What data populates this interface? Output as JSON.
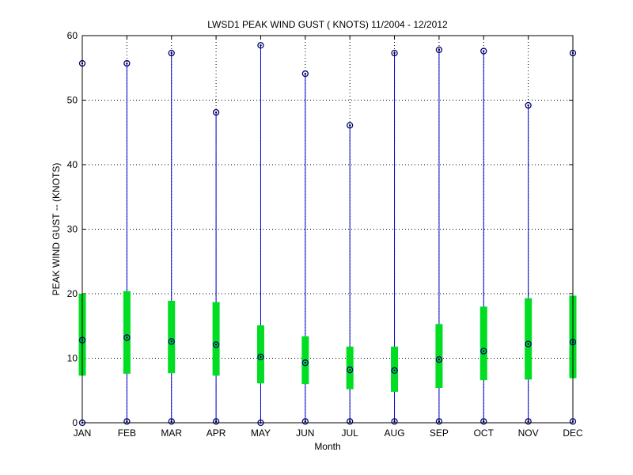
{
  "chart_data": {
    "type": "boxplot",
    "title": "LWSD1  PEAK WIND GUST ( KNOTS) 11/2004 - 12/2012",
    "xlabel": "Month",
    "ylabel": "PEAK WIND GUST -- (KNOTS)",
    "categories": [
      "JAN",
      "FEB",
      "MAR",
      "APR",
      "MAY",
      "JUN",
      "JUL",
      "AUG",
      "SEP",
      "OCT",
      "NOV",
      "DEC"
    ],
    "ylim": [
      0,
      60
    ],
    "yticks": [
      "0",
      "10",
      "20",
      "30",
      "40",
      "50",
      "60"
    ],
    "grid": true,
    "series": [
      {
        "min": [
          0,
          0.2,
          0.2,
          0.2,
          0,
          0.2,
          0.2,
          0.2,
          0.2,
          0.2,
          0.2,
          0.2
        ],
        "q1": [
          7.3,
          7.6,
          7.7,
          7.3,
          6.1,
          6.0,
          5.2,
          4.8,
          5.4,
          6.6,
          6.7,
          6.9
        ],
        "median": [
          12.8,
          13.2,
          12.6,
          12.1,
          10.2,
          9.3,
          8.2,
          8.1,
          9.8,
          11.1,
          12.2,
          12.5
        ],
        "q3": [
          20.0,
          20.4,
          18.9,
          18.7,
          15.1,
          13.4,
          11.8,
          11.8,
          15.3,
          18.0,
          19.3,
          19.7
        ],
        "max": [
          55.7,
          55.7,
          57.3,
          48.1,
          58.5,
          54.1,
          46.1,
          57.3,
          57.8,
          57.6,
          49.2,
          57.3
        ]
      }
    ],
    "colors": {
      "whisker": "#0000cc",
      "box": "#00dd22",
      "marker": "#000080",
      "grid": "#000000"
    }
  }
}
